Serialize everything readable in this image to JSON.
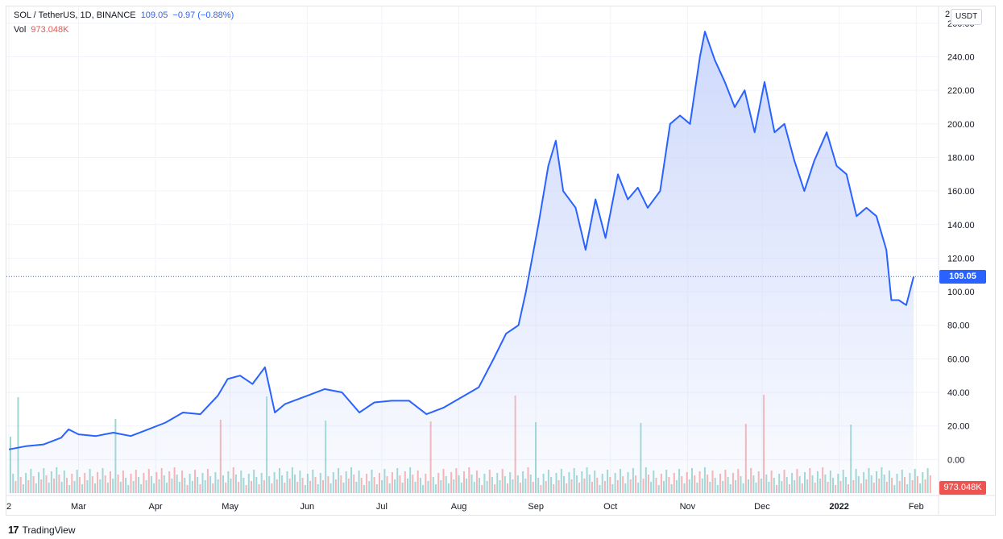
{
  "header": {
    "symbol": "SOL / TetherUS, 1D, BINANCE",
    "last": "109.05",
    "change": "−0.97 (−0.88%)",
    "vol_label": "Vol",
    "vol_value": "973.048K"
  },
  "currency_button": "USDT",
  "axis_cut_label": "2",
  "price_badge": "109.05",
  "volume_badge": "973.048K",
  "footer": {
    "brand": "TradingView",
    "logo_text": "17"
  },
  "colors": {
    "line": "#2962ff",
    "area_top": "#c9d5fb",
    "vol_up": "#26a69a",
    "vol_down": "#ef5350"
  },
  "chart_data": {
    "type": "area",
    "title": "SOL / TetherUS, 1D, BINANCE",
    "y_unit": "USDT",
    "ylim": [
      -20,
      270
    ],
    "grid": true,
    "y_ticks": [
      "260.00",
      "240.00",
      "220.00",
      "200.00",
      "180.00",
      "160.00",
      "140.00",
      "120.00",
      "100.00",
      "80.00",
      "60.00",
      "40.00",
      "20.00",
      "0.00"
    ],
    "x_ticks": [
      "2",
      "Mar",
      "Apr",
      "May",
      "Jun",
      "Jul",
      "Aug",
      "Sep",
      "Oct",
      "Nov",
      "Dec",
      "2022",
      "Feb"
    ],
    "x_tick_dates": [
      "2021-02-01",
      "2021-03-01",
      "2021-04-01",
      "2021-05-01",
      "2021-06-01",
      "2021-07-01",
      "2021-08-01",
      "2021-09-01",
      "2021-10-01",
      "2021-11-01",
      "2021-12-01",
      "2022-01-01",
      "2022-02-01"
    ],
    "series": [
      {
        "name": "Close",
        "points": [
          [
            "2021-02-01",
            6
          ],
          [
            "2021-02-08",
            8
          ],
          [
            "2021-02-15",
            9
          ],
          [
            "2021-02-22",
            13
          ],
          [
            "2021-02-25",
            18
          ],
          [
            "2021-03-01",
            15
          ],
          [
            "2021-03-08",
            14
          ],
          [
            "2021-03-15",
            16
          ],
          [
            "2021-03-22",
            14
          ],
          [
            "2021-03-29",
            18
          ],
          [
            "2021-04-05",
            22
          ],
          [
            "2021-04-12",
            28
          ],
          [
            "2021-04-19",
            27
          ],
          [
            "2021-04-26",
            38
          ],
          [
            "2021-04-30",
            48
          ],
          [
            "2021-05-05",
            50
          ],
          [
            "2021-05-10",
            45
          ],
          [
            "2021-05-15",
            55
          ],
          [
            "2021-05-19",
            28
          ],
          [
            "2021-05-23",
            33
          ],
          [
            "2021-06-01",
            38
          ],
          [
            "2021-06-08",
            42
          ],
          [
            "2021-06-15",
            40
          ],
          [
            "2021-06-22",
            28
          ],
          [
            "2021-06-28",
            34
          ],
          [
            "2021-07-05",
            35
          ],
          [
            "2021-07-12",
            35
          ],
          [
            "2021-07-19",
            27
          ],
          [
            "2021-07-26",
            31
          ],
          [
            "2021-08-02",
            37
          ],
          [
            "2021-08-09",
            43
          ],
          [
            "2021-08-15",
            60
          ],
          [
            "2021-08-20",
            75
          ],
          [
            "2021-08-25",
            80
          ],
          [
            "2021-08-28",
            100
          ],
          [
            "2021-09-02",
            140
          ],
          [
            "2021-09-06",
            175
          ],
          [
            "2021-09-09",
            190
          ],
          [
            "2021-09-12",
            160
          ],
          [
            "2021-09-17",
            150
          ],
          [
            "2021-09-21",
            125
          ],
          [
            "2021-09-25",
            155
          ],
          [
            "2021-09-29",
            132
          ],
          [
            "2021-10-04",
            170
          ],
          [
            "2021-10-08",
            155
          ],
          [
            "2021-10-12",
            162
          ],
          [
            "2021-10-16",
            150
          ],
          [
            "2021-10-21",
            160
          ],
          [
            "2021-10-25",
            200
          ],
          [
            "2021-10-29",
            205
          ],
          [
            "2021-11-02",
            200
          ],
          [
            "2021-11-06",
            240
          ],
          [
            "2021-11-08",
            255
          ],
          [
            "2021-11-12",
            238
          ],
          [
            "2021-11-16",
            225
          ],
          [
            "2021-11-20",
            210
          ],
          [
            "2021-11-24",
            220
          ],
          [
            "2021-11-28",
            195
          ],
          [
            "2021-12-02",
            225
          ],
          [
            "2021-12-06",
            195
          ],
          [
            "2021-12-10",
            200
          ],
          [
            "2021-12-14",
            178
          ],
          [
            "2021-12-18",
            160
          ],
          [
            "2021-12-22",
            178
          ],
          [
            "2021-12-27",
            195
          ],
          [
            "2021-12-31",
            175
          ],
          [
            "2022-01-04",
            170
          ],
          [
            "2022-01-08",
            145
          ],
          [
            "2022-01-12",
            150
          ],
          [
            "2022-01-16",
            145
          ],
          [
            "2022-01-20",
            125
          ],
          [
            "2022-01-22",
            95
          ],
          [
            "2022-01-25",
            95
          ],
          [
            "2022-01-28",
            92
          ],
          [
            "2022-01-31",
            109.05
          ]
        ]
      },
      {
        "name": "Vol",
        "last": "973.048K"
      }
    ]
  }
}
